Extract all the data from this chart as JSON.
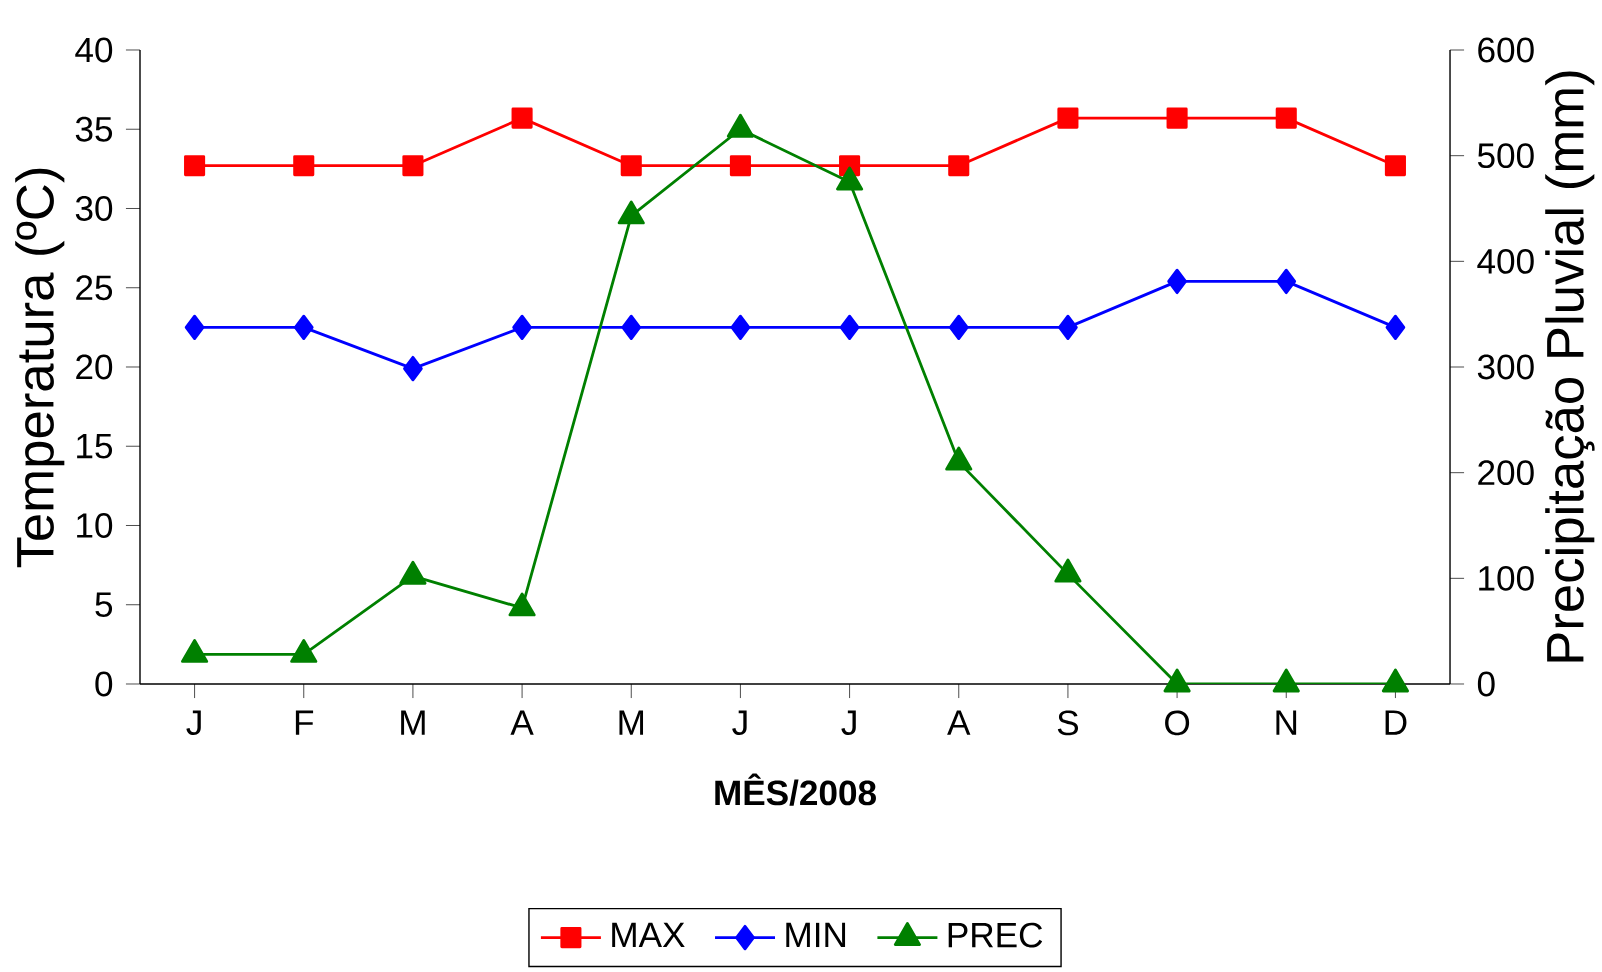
{
  "chart_data": {
    "type": "line",
    "xlabel": "**MÊS/2008**",
    "ylabel": "Temperatura (ºC)",
    "y2label": "Precipitação Pluvial (mm)",
    "categories": [
      "J",
      "F",
      "M",
      "A",
      "M",
      "J",
      "J",
      "A",
      "S",
      "O",
      "N",
      "D"
    ],
    "series": [
      {
        "name": "MAX",
        "color": "#ff0000",
        "marker": "square",
        "values": [
          32.7,
          32.7,
          32.7,
          35.7,
          32.7,
          32.7,
          32.7,
          32.7,
          35.7,
          35.7,
          35.7,
          32.7
        ]
      },
      {
        "name": "MIN",
        "color": "#0000ff",
        "marker": "diamond",
        "values": [
          22.5,
          22.5,
          19.9,
          22.5,
          22.5,
          22.5,
          22.5,
          22.5,
          22.5,
          25.4,
          25.4,
          22.5
        ]
      },
      {
        "name": "PREC",
        "color": "#008000",
        "marker": "triangle",
        "axis": "y2",
        "values": [
          28,
          28,
          102,
          72,
          443,
          525,
          475,
          210,
          104,
          0,
          0,
          0
        ]
      }
    ],
    "ylim": [
      0,
      40
    ],
    "yticks": [
      0,
      5,
      10,
      15,
      20,
      25,
      30,
      35,
      40
    ],
    "y2lim": [
      0,
      600
    ],
    "y2ticks": [
      0,
      100,
      200,
      300,
      400,
      500,
      600
    ],
    "grid": false,
    "legend": "bottom"
  }
}
